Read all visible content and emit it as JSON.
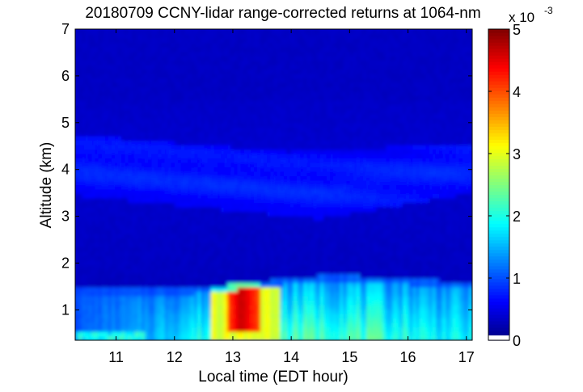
{
  "chart_data": {
    "type": "heatmap",
    "title": "20180709 CCNY-lidar range-corrected returns at 1064-nm",
    "xlabel": "Local time (EDT hour)",
    "ylabel": "Altitude (km)",
    "xlim": [
      10.3,
      17.1
    ],
    "ylim": [
      0.35,
      7
    ],
    "xticks": [
      11,
      12,
      13,
      14,
      15,
      16,
      17
    ],
    "yticks": [
      1,
      2,
      3,
      4,
      5,
      6,
      7
    ],
    "colorbar": {
      "range": [
        0,
        5
      ],
      "ticks": [
        0,
        1,
        2,
        3,
        4,
        5
      ],
      "exponent_prefix": "x 10",
      "exponent": "-3",
      "colormap": "jet"
    },
    "features": [
      {
        "name": "free troposphere",
        "altitude_range_km": [
          1.8,
          7
        ],
        "value": 0.4
      },
      {
        "name": "elevated aerosol layer",
        "time_range": [
          10.3,
          17.1
        ],
        "altitude_range_km": [
          3.4,
          4.8
        ],
        "value": 0.75
      },
      {
        "name": "boundary layer",
        "time_range": [
          10.3,
          17.1
        ],
        "top_altitude_km": [
          1.45,
          1.75
        ],
        "value": 1.8
      },
      {
        "name": "maximum returns",
        "time_range": [
          12.9,
          13.45
        ],
        "altitude_range_km": [
          0.5,
          1.55
        ],
        "value": 4.7
      }
    ],
    "grid": false
  }
}
